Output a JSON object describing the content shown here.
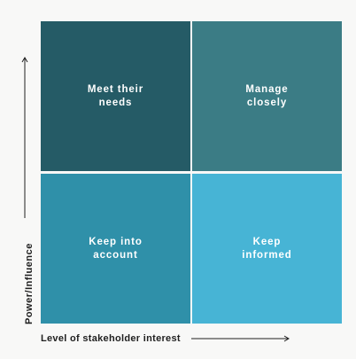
{
  "quadrants": {
    "top_left": "Meet their\nneeds",
    "top_right": "Manage\nclosely",
    "bottom_left": "Keep into\naccount",
    "bottom_right": "Keep\ninformed"
  },
  "axes": {
    "y_label": "Power/Influence",
    "x_label": "Level of stakeholder interest"
  },
  "colors": {
    "top_left": "#255b66",
    "top_right": "#3b7c85",
    "bottom_left": "#2f90a9",
    "bottom_right": "#47b4d5",
    "background": "#f8f8f7"
  }
}
